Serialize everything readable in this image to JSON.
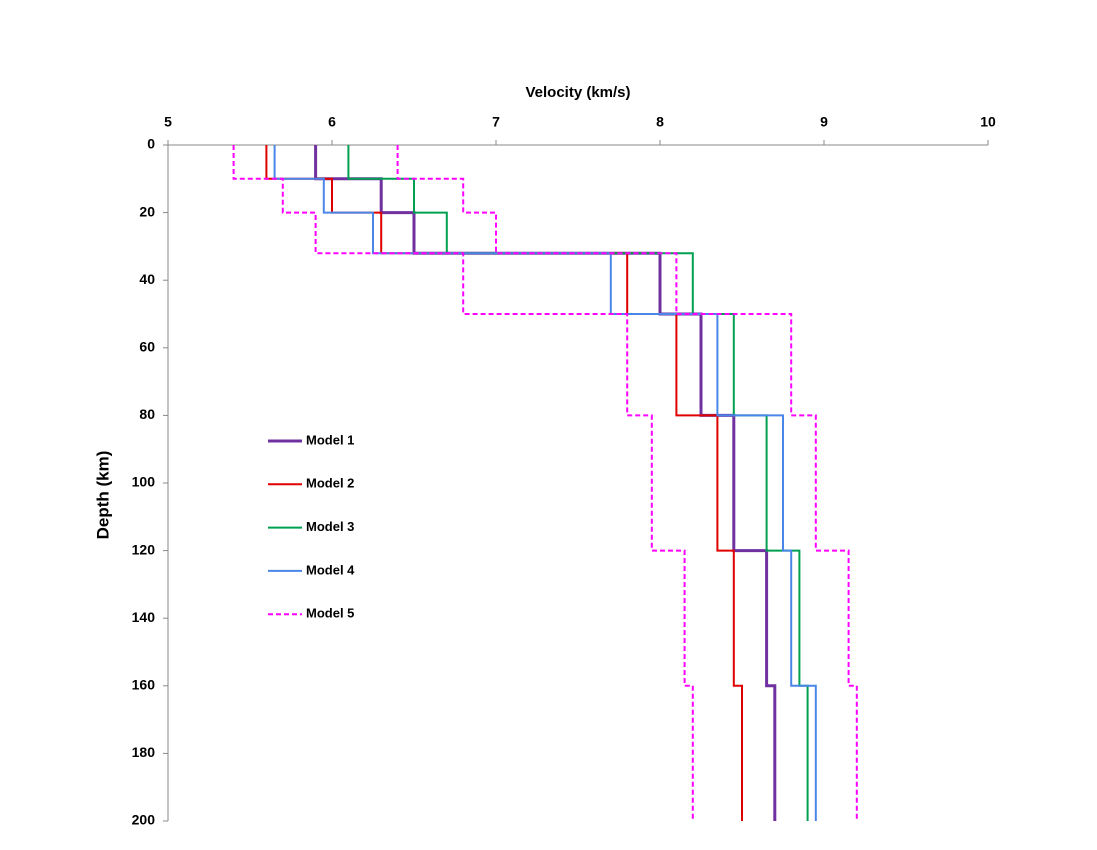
{
  "chart_data": {
    "type": "line",
    "x_label": "Velocity (km/s)",
    "y_label": "Depth (km)",
    "xlim": [
      5,
      10
    ],
    "xticks": [
      5,
      6,
      7,
      8,
      9,
      10
    ],
    "ylim": [
      0,
      200
    ],
    "yticks": [
      0,
      20,
      40,
      60,
      80,
      100,
      120,
      140,
      160,
      180,
      200
    ],
    "y_inverted": true,
    "x_axis_position": "top",
    "grid": false,
    "series": [
      {
        "name": "Model 1",
        "color": "#7030a0",
        "dashed": false,
        "x": [
          5.9,
          5.9,
          6.3,
          6.3,
          6.5,
          6.5,
          8.0,
          8.0,
          8.25,
          8.25,
          8.45,
          8.45,
          8.65,
          8.65,
          8.7,
          8.7
        ],
        "y": [
          0,
          10,
          10,
          20,
          20,
          32,
          32,
          50,
          50,
          80,
          80,
          120,
          120,
          160,
          160,
          200
        ]
      },
      {
        "name": "Model 2",
        "color": "#e00000",
        "dashed": false,
        "x": [
          5.6,
          5.6,
          6.0,
          6.0,
          6.3,
          6.3,
          7.8,
          7.8,
          8.1,
          8.1,
          8.35,
          8.35,
          8.45,
          8.45,
          8.5,
          8.5
        ],
        "y": [
          0,
          10,
          10,
          20,
          20,
          32,
          32,
          50,
          50,
          80,
          80,
          120,
          120,
          160,
          160,
          200
        ]
      },
      {
        "name": "Model 3",
        "color": "#00a050",
        "dashed": false,
        "x": [
          6.1,
          6.1,
          6.5,
          6.5,
          6.7,
          6.7,
          8.2,
          8.2,
          8.45,
          8.45,
          8.65,
          8.65,
          8.85,
          8.85,
          8.9,
          8.9
        ],
        "y": [
          0,
          10,
          10,
          20,
          20,
          32,
          32,
          50,
          50,
          80,
          80,
          120,
          120,
          160,
          160,
          200
        ]
      },
      {
        "name": "Model 4",
        "color": "#4a86e8",
        "dashed": false,
        "x": [
          5.65,
          5.65,
          5.95,
          5.95,
          6.25,
          6.25,
          7.7,
          7.7,
          8.35,
          8.35,
          8.75,
          8.75,
          8.8,
          8.8,
          8.95,
          8.95
        ],
        "y": [
          0,
          10,
          10,
          20,
          20,
          32,
          32,
          50,
          50,
          80,
          80,
          120,
          120,
          160,
          160,
          200
        ]
      },
      {
        "name": "Model 5",
        "color": "#ff00ff",
        "dashed": true,
        "x": [
          5.4,
          5.4,
          5.7,
          5.7,
          5.9,
          5.9,
          6.8,
          6.8,
          7.8,
          7.8,
          7.95,
          7.95,
          8.15,
          8.15,
          8.2,
          8.2,
          null,
          6.4,
          6.4,
          6.8,
          6.8,
          7.0,
          7.0,
          8.1,
          8.1,
          8.8,
          8.8,
          8.95,
          8.95,
          9.15,
          9.15,
          9.2,
          9.2
        ],
        "y": [
          0,
          10,
          10,
          20,
          20,
          32,
          32,
          50,
          50,
          80,
          80,
          120,
          120,
          160,
          160,
          200,
          null,
          0,
          10,
          10,
          20,
          20,
          32,
          32,
          50,
          50,
          80,
          80,
          120,
          120,
          160,
          160,
          200
        ]
      }
    ]
  }
}
